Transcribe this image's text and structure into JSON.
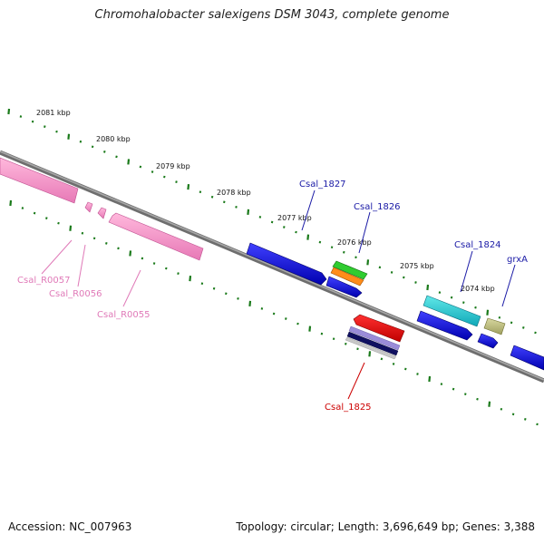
{
  "title": "Chromohalobacter salexigens DSM 3043, complete genome",
  "footer": {
    "accession": "Accession: NC_007963",
    "summary": "Topology: circular; Length: 3,696,649 bp; Genes: 3,388"
  },
  "colors": {
    "backbone": "#808080",
    "tick": "#1a7a1a",
    "label_blue": "#1a1aa6",
    "label_pink": "#e07ab8",
    "label_red": "#cc0000"
  },
  "kbp_ticks": [
    {
      "label": "2081 kbp"
    },
    {
      "label": "2080 kbp"
    },
    {
      "label": "2079 kbp"
    },
    {
      "label": "2078 kbp"
    },
    {
      "label": "2077 kbp"
    },
    {
      "label": "2076 kbp"
    },
    {
      "label": "2075 kbp"
    },
    {
      "label": "2074 kbp"
    }
  ],
  "features": [
    {
      "id": "Csal_1827",
      "strand": "forward",
      "color": "blue"
    },
    {
      "id": "Csal_1826",
      "strand": "forward",
      "color": "green-orange"
    },
    {
      "id": "Csal_1824",
      "strand": "forward",
      "color": "cyan"
    },
    {
      "id": "grxA",
      "strand": "forward",
      "color": "olive"
    },
    {
      "id": "Csal_1825",
      "strand": "reverse",
      "color": "red"
    },
    {
      "id": "Csal_R0057",
      "strand": "reverse",
      "color": "pink"
    },
    {
      "id": "Csal_R0056",
      "strand": "reverse",
      "color": "pink"
    },
    {
      "id": "Csal_R0055",
      "strand": "reverse",
      "color": "pink"
    }
  ]
}
